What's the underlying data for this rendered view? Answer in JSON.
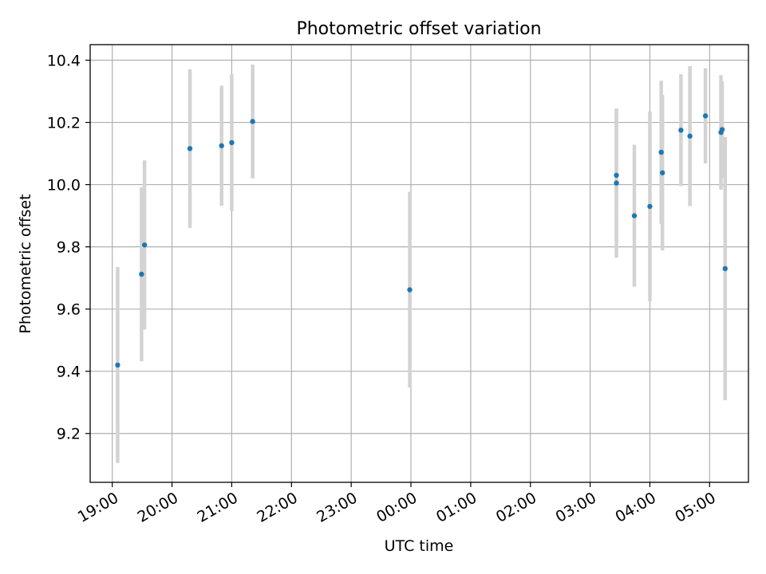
{
  "chart_data": {
    "type": "scatter",
    "title": "Photometric offset variation",
    "xlabel": "UTC time",
    "ylabel": "Photometric offset",
    "x_unit": "hours since 19:00 UTC",
    "xlim": [
      -0.37,
      10.65
    ],
    "ylim": [
      9.043,
      10.45
    ],
    "xticks": [
      {
        "value": 0,
        "label": "19:00"
      },
      {
        "value": 1,
        "label": "20:00"
      },
      {
        "value": 2,
        "label": "21:00"
      },
      {
        "value": 3,
        "label": "22:00"
      },
      {
        "value": 4,
        "label": "23:00"
      },
      {
        "value": 5,
        "label": "00:00"
      },
      {
        "value": 6,
        "label": "01:00"
      },
      {
        "value": 7,
        "label": "02:00"
      },
      {
        "value": 8,
        "label": "03:00"
      },
      {
        "value": 9,
        "label": "04:00"
      },
      {
        "value": 10,
        "label": "05:00"
      }
    ],
    "yticks": [
      {
        "value": 9.2,
        "label": "9.2"
      },
      {
        "value": 9.4,
        "label": "9.4"
      },
      {
        "value": 9.6,
        "label": "9.6"
      },
      {
        "value": 9.8,
        "label": "9.8"
      },
      {
        "value": 10.0,
        "label": "10.0"
      },
      {
        "value": 10.2,
        "label": "10.2"
      },
      {
        "value": 10.4,
        "label": "10.4"
      }
    ],
    "grid": true,
    "marker_color": "#1f77b4",
    "errorbar_color": "#d3d3d3",
    "points": [
      {
        "x": 0.09,
        "y": 9.42,
        "yerr": 0.315
      },
      {
        "x": 0.49,
        "y": 9.712,
        "yerr": 0.28
      },
      {
        "x": 0.54,
        "y": 9.806,
        "yerr": 0.272
      },
      {
        "x": 1.3,
        "y": 10.116,
        "yerr": 0.255
      },
      {
        "x": 1.83,
        "y": 10.125,
        "yerr": 0.193
      },
      {
        "x": 2.0,
        "y": 10.135,
        "yerr": 0.22
      },
      {
        "x": 2.35,
        "y": 10.203,
        "yerr": 0.183
      },
      {
        "x": 4.98,
        "y": 9.662,
        "yerr": 0.315
      },
      {
        "x": 8.44,
        "y": 10.03,
        "yerr": 0.215
      },
      {
        "x": 8.44,
        "y": 10.005,
        "yerr": 0.24
      },
      {
        "x": 8.74,
        "y": 9.9,
        "yerr": 0.228
      },
      {
        "x": 9.0,
        "y": 9.93,
        "yerr": 0.305
      },
      {
        "x": 9.19,
        "y": 10.104,
        "yerr": 0.23
      },
      {
        "x": 9.21,
        "y": 10.038,
        "yerr": 0.25
      },
      {
        "x": 9.52,
        "y": 10.175,
        "yerr": 0.18
      },
      {
        "x": 9.67,
        "y": 10.156,
        "yerr": 0.225
      },
      {
        "x": 9.93,
        "y": 10.221,
        "yerr": 0.153
      },
      {
        "x": 10.19,
        "y": 10.168,
        "yerr": 0.184
      },
      {
        "x": 10.21,
        "y": 10.177,
        "yerr": 0.155
      },
      {
        "x": 10.26,
        "y": 9.73,
        "yerr": 0.423
      }
    ]
  }
}
